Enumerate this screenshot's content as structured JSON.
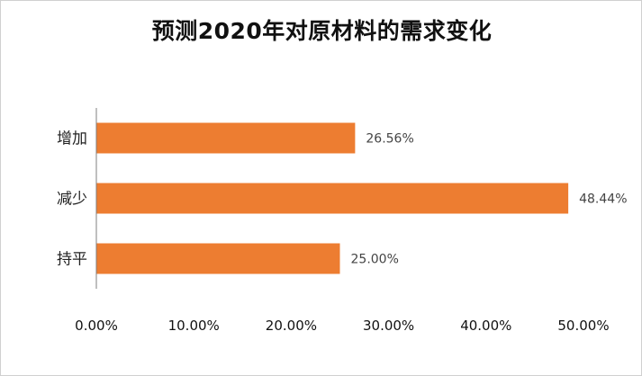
{
  "chart_data": {
    "type": "bar",
    "orientation": "horizontal",
    "title": "预测2020年对原材料的需求变化",
    "categories": [
      "增加",
      "减少",
      "持平"
    ],
    "values": [
      26.56,
      48.44,
      25.0
    ],
    "value_labels": [
      "26.56%",
      "48.44%",
      "25.00%"
    ],
    "xlim": [
      0,
      50
    ],
    "x_ticks": [
      0,
      10,
      20,
      30,
      40,
      50
    ],
    "x_tick_labels": [
      "0.00%",
      "10.00%",
      "20.00%",
      "30.00%",
      "40.00%",
      "50.00%"
    ],
    "bar_color": "#ed7d31",
    "grid": false,
    "legend": "none"
  }
}
